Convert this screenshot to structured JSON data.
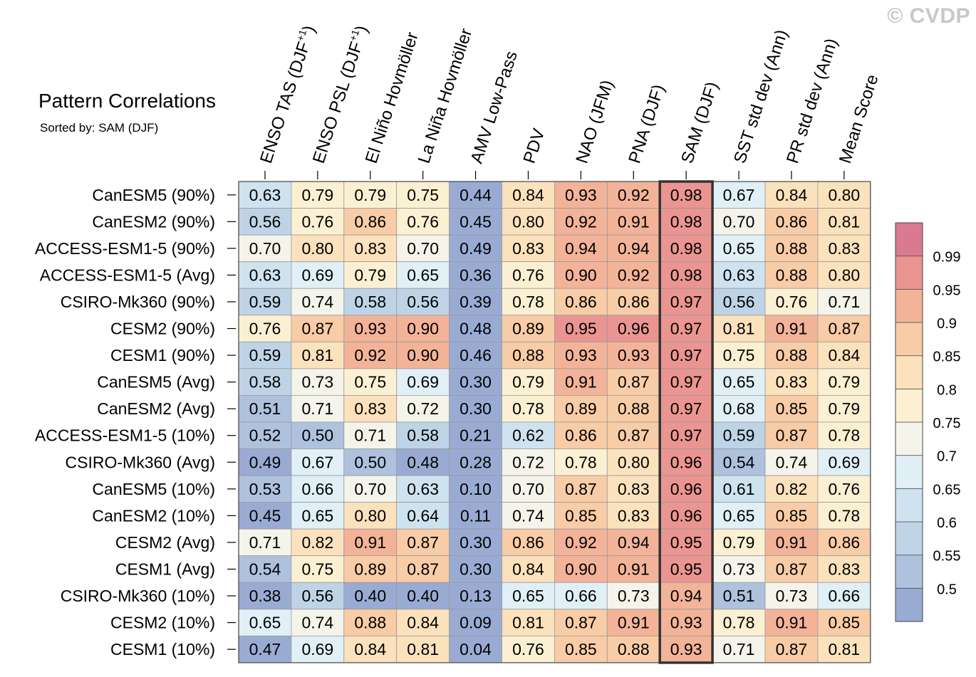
{
  "watermark": "© CVDP",
  "chart_data": {
    "type": "heatmap",
    "title": "Pattern Correlations",
    "subtitle": "Sorted by: SAM (DJF)",
    "columns": [
      "ENSO TAS (DJF+1)",
      "ENSO PSL (DJF+1)",
      "El Niño Hovmöller",
      "La Niña Hovmöller",
      "AMV Low-Pass",
      "PDV",
      "NAO (JFM)",
      "PNA (DJF)",
      "SAM (DJF)",
      "SST std dev (Ann)",
      "PR std dev (Ann)",
      "Mean Score"
    ],
    "highlighted_column": "SAM (DJF)",
    "rows": [
      {
        "label": "CanESM5 (90%)",
        "values": [
          0.63,
          0.79,
          0.79,
          0.75,
          0.44,
          0.84,
          0.93,
          0.92,
          0.98,
          0.67,
          0.84,
          0.8
        ]
      },
      {
        "label": "CanESM2 (90%)",
        "values": [
          0.56,
          0.76,
          0.86,
          0.76,
          0.45,
          0.8,
          0.92,
          0.91,
          0.98,
          0.7,
          0.86,
          0.81
        ]
      },
      {
        "label": "ACCESS-ESM1-5 (90%)",
        "values": [
          0.7,
          0.8,
          0.83,
          0.7,
          0.49,
          0.83,
          0.94,
          0.94,
          0.98,
          0.65,
          0.88,
          0.83
        ]
      },
      {
        "label": "ACCESS-ESM1-5 (Avg)",
        "values": [
          0.63,
          0.69,
          0.79,
          0.65,
          0.36,
          0.76,
          0.9,
          0.92,
          0.98,
          0.63,
          0.88,
          0.8
        ]
      },
      {
        "label": "CSIRO-Mk360 (90%)",
        "values": [
          0.59,
          0.74,
          0.58,
          0.56,
          0.39,
          0.78,
          0.86,
          0.86,
          0.97,
          0.56,
          0.76,
          0.71
        ]
      },
      {
        "label": "CESM2 (90%)",
        "values": [
          0.76,
          0.87,
          0.93,
          0.9,
          0.48,
          0.89,
          0.95,
          0.96,
          0.97,
          0.81,
          0.91,
          0.87
        ]
      },
      {
        "label": "CESM1 (90%)",
        "values": [
          0.59,
          0.81,
          0.92,
          0.9,
          0.46,
          0.88,
          0.93,
          0.93,
          0.97,
          0.75,
          0.88,
          0.84
        ]
      },
      {
        "label": "CanESM5 (Avg)",
        "values": [
          0.58,
          0.73,
          0.75,
          0.69,
          0.3,
          0.79,
          0.91,
          0.87,
          0.97,
          0.65,
          0.83,
          0.79
        ]
      },
      {
        "label": "CanESM2 (Avg)",
        "values": [
          0.51,
          0.71,
          0.83,
          0.72,
          0.3,
          0.78,
          0.89,
          0.88,
          0.97,
          0.68,
          0.85,
          0.79
        ]
      },
      {
        "label": "ACCESS-ESM1-5 (10%)",
        "values": [
          0.52,
          0.5,
          0.71,
          0.58,
          0.21,
          0.62,
          0.86,
          0.87,
          0.97,
          0.59,
          0.87,
          0.78
        ]
      },
      {
        "label": "CSIRO-Mk360 (Avg)",
        "values": [
          0.49,
          0.67,
          0.5,
          0.48,
          0.28,
          0.72,
          0.78,
          0.8,
          0.96,
          0.54,
          0.74,
          0.69
        ]
      },
      {
        "label": "CanESM5 (10%)",
        "values": [
          0.53,
          0.66,
          0.7,
          0.63,
          0.1,
          0.7,
          0.87,
          0.83,
          0.96,
          0.61,
          0.82,
          0.76
        ]
      },
      {
        "label": "CanESM2 (10%)",
        "values": [
          0.45,
          0.65,
          0.8,
          0.64,
          0.11,
          0.74,
          0.85,
          0.83,
          0.96,
          0.65,
          0.85,
          0.78
        ]
      },
      {
        "label": "CESM2 (Avg)",
        "values": [
          0.71,
          0.82,
          0.91,
          0.87,
          0.3,
          0.86,
          0.92,
          0.94,
          0.95,
          0.79,
          0.91,
          0.86
        ]
      },
      {
        "label": "CESM1 (Avg)",
        "values": [
          0.54,
          0.75,
          0.89,
          0.87,
          0.3,
          0.84,
          0.9,
          0.91,
          0.95,
          0.73,
          0.87,
          0.83
        ]
      },
      {
        "label": "CSIRO-Mk360 (10%)",
        "values": [
          0.38,
          0.56,
          0.4,
          0.4,
          0.13,
          0.65,
          0.66,
          0.73,
          0.94,
          0.51,
          0.73,
          0.66
        ]
      },
      {
        "label": "CESM2 (10%)",
        "values": [
          0.65,
          0.74,
          0.88,
          0.84,
          0.09,
          0.81,
          0.87,
          0.91,
          0.93,
          0.78,
          0.91,
          0.85
        ]
      },
      {
        "label": "CESM1 (10%)",
        "values": [
          0.47,
          0.69,
          0.84,
          0.81,
          0.04,
          0.76,
          0.85,
          0.88,
          0.93,
          0.71,
          0.87,
          0.81
        ]
      }
    ],
    "colorbar": {
      "levels": [
        "0.5",
        "0.55",
        "0.6",
        "0.65",
        "0.7",
        "0.75",
        "0.8",
        "0.85",
        "0.9",
        "0.95",
        "0.99"
      ],
      "level_values": [
        0.5,
        0.55,
        0.6,
        0.65,
        0.7,
        0.75,
        0.8,
        0.85,
        0.9,
        0.95,
        0.99
      ],
      "colors": [
        "#9aabd3",
        "#aec2de",
        "#bed4e6",
        "#cfe2ef",
        "#e1eff7",
        "#f5f4ea",
        "#fcf0d3",
        "#fbe2bd",
        "#f8cca6",
        "#f3b399",
        "#ea9591",
        "#d97a91"
      ]
    }
  }
}
